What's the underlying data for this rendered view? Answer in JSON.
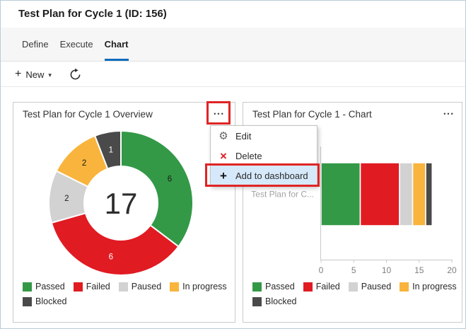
{
  "window": {
    "title": "Test Plan for Cycle 1 (ID: 156)"
  },
  "tabs": [
    {
      "label": "Define",
      "active": false
    },
    {
      "label": "Execute",
      "active": false
    },
    {
      "label": "Chart",
      "active": true
    }
  ],
  "toolbar": {
    "new_label": "New"
  },
  "icons": {
    "plus": "+",
    "caret_down": "▾",
    "ellipsis": "•••",
    "gear": "⚙",
    "delete_x": "×",
    "refresh": "circular-arrow"
  },
  "context_menu": {
    "items": [
      {
        "icon": "gear-icon",
        "label": "Edit",
        "highlighted": false
      },
      {
        "icon": "delete-icon",
        "label": "Delete",
        "highlighted": false
      },
      {
        "icon": "plus-icon",
        "label": "Add to dashboard",
        "highlighted": true
      }
    ]
  },
  "annotations": {
    "color": "#E02424",
    "targets": [
      "ellipsis-button-overview-card",
      "menu-item-add-to-dashboard"
    ]
  },
  "colors": {
    "passed_green": "#339947",
    "failed_red": "#E11B22",
    "paused_gray": "#D2D2D2",
    "in_progress_yellow": "#F8B43C",
    "blocked_dark": "#4A4A4A",
    "accent_blue": "#0F6CBD",
    "menu_highlight_blue": "#D6E9FA",
    "annotation_red": "#E02424"
  },
  "chart_data": [
    {
      "type": "pie",
      "subtype": "donut",
      "title": "Test Plan for Cycle 1 Overview",
      "categories": [
        "Passed",
        "Failed",
        "Paused",
        "In progress",
        "Blocked"
      ],
      "values": [
        6,
        6,
        2,
        2,
        1
      ],
      "colors": [
        "#339947",
        "#E11B22",
        "#D2D2D2",
        "#F8B43C",
        "#4A4A4A"
      ],
      "label_colors": [
        "#1b1b1b",
        "#ffffff",
        "#1b1b1b",
        "#1b1b1b",
        "#ffffff"
      ],
      "center_label": "17",
      "start_angle": "top",
      "direction": "clockwise",
      "legend_position": "bottom"
    },
    {
      "type": "bar",
      "orientation": "horizontal",
      "stacked": true,
      "title": "Test Plan for Cycle 1 - Chart",
      "categories": [
        "Test Plan for C..."
      ],
      "series": [
        {
          "name": "Passed",
          "color": "#339947",
          "values": [
            6
          ]
        },
        {
          "name": "Failed",
          "color": "#E11B22",
          "values": [
            6
          ]
        },
        {
          "name": "Paused",
          "color": "#D2D2D2",
          "values": [
            2
          ]
        },
        {
          "name": "In progress",
          "color": "#F8B43C",
          "values": [
            2
          ]
        },
        {
          "name": "Blocked",
          "color": "#4A4A4A",
          "values": [
            1
          ]
        }
      ],
      "xlim": [
        0,
        20
      ],
      "xticks": [
        0,
        5,
        10,
        15,
        20
      ],
      "grid": false,
      "legend_position": "bottom"
    }
  ]
}
